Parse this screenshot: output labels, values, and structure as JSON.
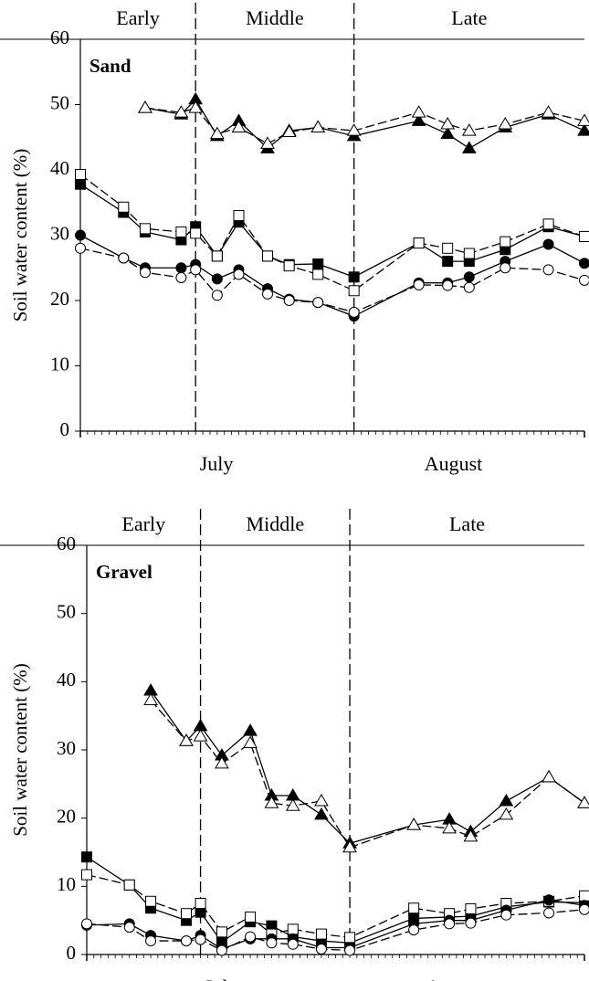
{
  "chart_data": [
    {
      "type": "line",
      "label": "Sand",
      "ylabel": "Soil water content (%)",
      "phase_labels": [
        "Early",
        "Middle",
        "Late"
      ],
      "dividers": [
        16,
        38
      ],
      "months": [
        "July",
        "August"
      ],
      "xlim": [
        0,
        70
      ],
      "ylim": [
        0,
        60
      ],
      "yticks": [
        0,
        10,
        20,
        30,
        40,
        50,
        60
      ],
      "xticks": [
        0,
        1,
        2,
        3,
        4,
        5,
        6,
        7,
        8,
        9,
        10,
        11,
        12,
        13,
        14,
        15,
        16,
        17,
        18,
        19,
        20,
        21,
        22,
        23,
        24,
        25,
        26,
        27,
        28,
        29,
        30,
        31,
        32,
        33,
        34,
        35,
        36,
        37,
        38,
        39,
        40,
        41,
        42,
        43,
        44,
        45,
        46,
        47,
        48,
        49,
        50,
        51,
        52,
        53,
        54,
        55,
        56,
        57,
        58,
        59,
        60,
        61,
        62,
        63,
        64,
        65,
        66,
        67,
        68,
        69,
        70
      ],
      "x": [
        0,
        6,
        9,
        14,
        16,
        19,
        22,
        26,
        29,
        33,
        38,
        47,
        51,
        54,
        59,
        65,
        70
      ],
      "series": [
        {
          "marker": "triangle",
          "filled": true,
          "color": "#000000",
          "values": [
            null,
            null,
            49.5,
            48.5,
            50.8,
            45.2,
            47.5,
            43.3,
            46.0,
            46.5,
            45.2,
            47.5,
            45.5,
            43.3,
            46.5,
            48.5,
            46.0
          ]
        },
        {
          "marker": "triangle",
          "filled": false,
          "color": "#000000",
          "values": [
            null,
            null,
            49.5,
            48.8,
            49.5,
            45.5,
            46.5,
            44.0,
            45.8,
            46.5,
            46.0,
            48.8,
            47.0,
            46.0,
            47.0,
            48.8,
            47.5
          ]
        },
        {
          "marker": "square",
          "filled": true,
          "color": "#000000",
          "values": [
            37.8,
            33.5,
            30.5,
            29.3,
            31.3,
            26.8,
            32.0,
            26.8,
            25.5,
            25.6,
            23.6,
            28.8,
            26.0,
            26.0,
            27.8,
            31.3,
            29.8
          ]
        },
        {
          "marker": "square",
          "filled": false,
          "color": "#000000",
          "values": [
            39.3,
            34.3,
            31.0,
            30.5,
            30.3,
            26.8,
            33.0,
            26.8,
            25.3,
            24.0,
            21.5,
            28.8,
            28.0,
            27.2,
            29.0,
            31.7,
            29.8
          ]
        },
        {
          "marker": "circle",
          "filled": true,
          "color": "#000000",
          "values": [
            30.0,
            26.5,
            25.0,
            25.0,
            25.5,
            23.3,
            24.7,
            21.8,
            20.2,
            19.7,
            17.6,
            22.7,
            22.7,
            23.6,
            26.0,
            28.6,
            25.7
          ]
        },
        {
          "marker": "circle",
          "filled": false,
          "color": "#000000",
          "values": [
            28.0,
            26.5,
            24.3,
            23.5,
            24.7,
            20.8,
            24.0,
            21.0,
            20.0,
            19.7,
            18.2,
            22.4,
            22.3,
            22.0,
            25.0,
            24.7,
            23.1
          ]
        }
      ]
    },
    {
      "type": "line",
      "label": "Gravel",
      "ylabel": "Soil water content (%)",
      "phase_labels": [
        "Early",
        "Middle",
        "Late"
      ],
      "dividers": [
        16,
        37
      ],
      "months": [
        "July",
        "August"
      ],
      "xlim": [
        0,
        70
      ],
      "ylim": [
        0,
        60
      ],
      "yticks": [
        0,
        10,
        20,
        30,
        40,
        50,
        60
      ],
      "xticks": [
        0,
        1,
        2,
        3,
        4,
        5,
        6,
        7,
        8,
        9,
        10,
        11,
        12,
        13,
        14,
        15,
        16,
        17,
        18,
        19,
        20,
        21,
        22,
        23,
        24,
        25,
        26,
        27,
        28,
        29,
        30,
        31,
        32,
        33,
        34,
        35,
        36,
        37,
        38,
        39,
        40,
        41,
        42,
        43,
        44,
        45,
        46,
        47,
        48,
        49,
        50,
        51,
        52,
        53,
        54,
        55,
        56,
        57,
        58,
        59,
        60,
        61,
        62,
        63,
        64,
        65,
        66,
        67,
        68,
        69,
        70
      ],
      "x": [
        0,
        6,
        9,
        14,
        16,
        19,
        23,
        26,
        29,
        33,
        37,
        46,
        51,
        54,
        59,
        65,
        70
      ],
      "series": [
        {
          "marker": "triangle",
          "filled": true,
          "color": "#000000",
          "values": [
            null,
            null,
            38.7,
            31.3,
            33.5,
            29.2,
            32.8,
            23.3,
            23.3,
            20.5,
            16.3,
            19.0,
            19.8,
            18.0,
            22.5,
            26.0,
            22.2
          ]
        },
        {
          "marker": "triangle",
          "filled": false,
          "color": "#000000",
          "values": [
            null,
            null,
            37.3,
            31.3,
            32.0,
            28.0,
            31.0,
            22.2,
            21.8,
            22.5,
            15.7,
            19.0,
            18.5,
            17.3,
            20.5,
            26.0,
            22.2
          ]
        },
        {
          "marker": "square",
          "filled": true,
          "color": "#000000",
          "values": [
            14.3,
            10.2,
            6.8,
            5.0,
            6.2,
            1.8,
            4.8,
            4.2,
            2.6,
            2.0,
            1.7,
            5.3,
            5.5,
            5.6,
            7.0,
            7.7,
            7.6
          ]
        },
        {
          "marker": "square",
          "filled": false,
          "color": "#000000",
          "values": [
            11.7,
            10.2,
            7.8,
            6.0,
            7.5,
            3.3,
            5.5,
            3.0,
            3.7,
            3.0,
            2.5,
            6.8,
            6.0,
            6.7,
            7.5,
            7.8,
            8.6
          ]
        },
        {
          "marker": "circle",
          "filled": true,
          "color": "#000000",
          "values": [
            4.3,
            4.5,
            2.8,
            2.0,
            2.8,
            0.8,
            2.3,
            2.3,
            2.3,
            1.0,
            1.0,
            4.5,
            5.0,
            5.0,
            6.5,
            8.0,
            7.2
          ]
        },
        {
          "marker": "circle",
          "filled": false,
          "color": "#000000",
          "values": [
            4.5,
            4.0,
            2.0,
            2.0,
            2.2,
            0.6,
            2.6,
            1.7,
            1.5,
            0.8,
            0.6,
            3.6,
            4.5,
            4.6,
            5.8,
            6.1,
            6.6
          ]
        }
      ]
    }
  ]
}
